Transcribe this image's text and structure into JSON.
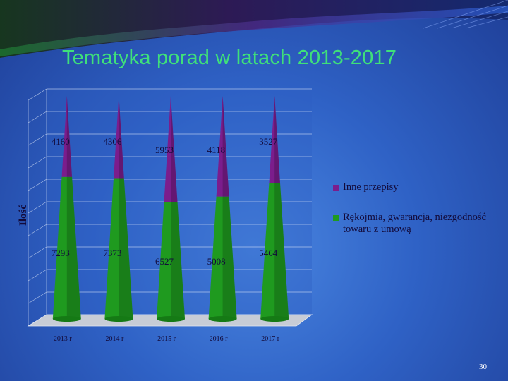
{
  "slide": {
    "title": "Tematyka porad w latach 2013-2017",
    "slide_number": "30"
  },
  "colors": {
    "green": "#1f9a1f",
    "purple": "#7b1d8c",
    "title": "#3fe07a"
  },
  "chart_data": {
    "type": "bar",
    "style": "3D cone (stacked)",
    "categories": [
      "2013 r",
      "2014 r",
      "2015 r",
      "2016 r",
      "2017 r"
    ],
    "series": [
      {
        "name": "Rękojmia, gwarancja, niezgodność towaru z umową",
        "values": [
          7293,
          7373,
          6527,
          5008,
          5464
        ],
        "color": "#1f9a1f"
      },
      {
        "name": "Inne przepisy",
        "values": [
          4160,
          4306,
          5953,
          4118,
          3527
        ],
        "color": "#7b1d8c"
      }
    ],
    "ylabel": "Ilość",
    "xlabel": "",
    "legend": {
      "position": "right",
      "entries": [
        "Inne przepisy",
        "Rękojmia, gwarancja, niezgodność towaru z umową"
      ]
    },
    "grid": true,
    "stacking": "percent"
  }
}
